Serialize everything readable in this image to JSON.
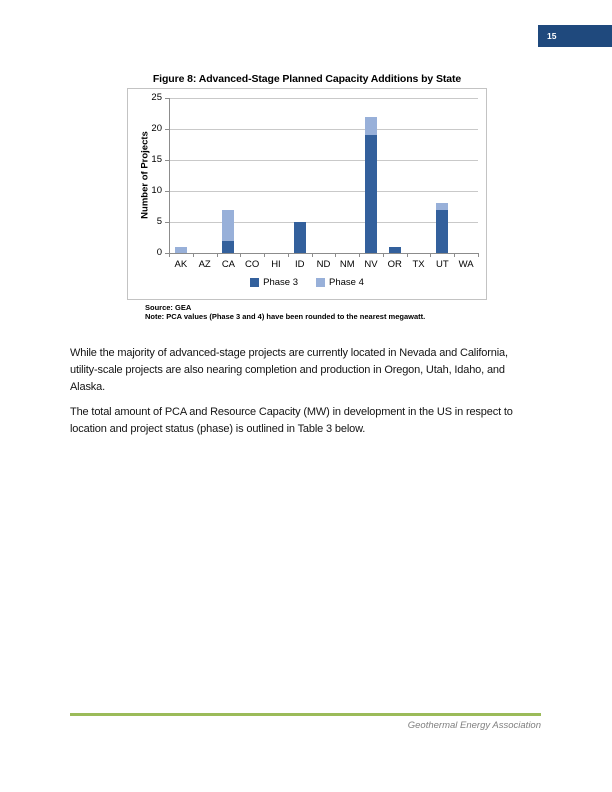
{
  "page": {
    "number": "15",
    "footer_text": "Geothermal Energy Association"
  },
  "figure": {
    "title": "Figure 8: Advanced-Stage Planned Capacity Additions by State",
    "source": "Source: GEA",
    "note": "Note: PCA values (Phase 3 and 4) have been rounded to the nearest megawatt."
  },
  "chart_data": {
    "type": "bar",
    "stacked": true,
    "title": "Figure 8: Advanced-Stage Planned Capacity Additions by State",
    "categories": [
      "AK",
      "AZ",
      "CA",
      "CO",
      "HI",
      "ID",
      "ND",
      "NM",
      "NV",
      "OR",
      "TX",
      "UT",
      "WA"
    ],
    "series": [
      {
        "name": "Phase 3",
        "color": "#33609C",
        "values": [
          0,
          0,
          2,
          0,
          0,
          5,
          0,
          0,
          19,
          1,
          0,
          7,
          0
        ]
      },
      {
        "name": "Phase 4",
        "color": "#98B0D9",
        "values": [
          1,
          0,
          5,
          0,
          0,
          0,
          0,
          0,
          3,
          0,
          0,
          1,
          0
        ]
      }
    ],
    "xlabel": "",
    "ylabel": "Number of Projects",
    "ylim": [
      0,
      25
    ],
    "yticks": [
      0,
      5,
      10,
      15,
      20,
      25
    ],
    "grid": true,
    "legend_position": "bottom"
  },
  "paragraphs": [
    "While the majority of advanced-stage projects are currently located in Nevada and California,\nutility-scale projects are also nearing completion and production in Oregon, Utah, Idaho, and\nAlaska.",
    "The total amount of PCA and Resource Capacity (MW) in development in the US in respect to\nlocation and project status (phase) is outlined in Table 3 below."
  ],
  "colors": {
    "page_number_bg": "#1F497D",
    "footer_line": "#9BBB59",
    "footer_text": "#7F7F7F",
    "phase3": "#33609C",
    "phase4": "#98B0D9",
    "gridline": "#C9C9C9",
    "axis": "#8C8C8C"
  }
}
